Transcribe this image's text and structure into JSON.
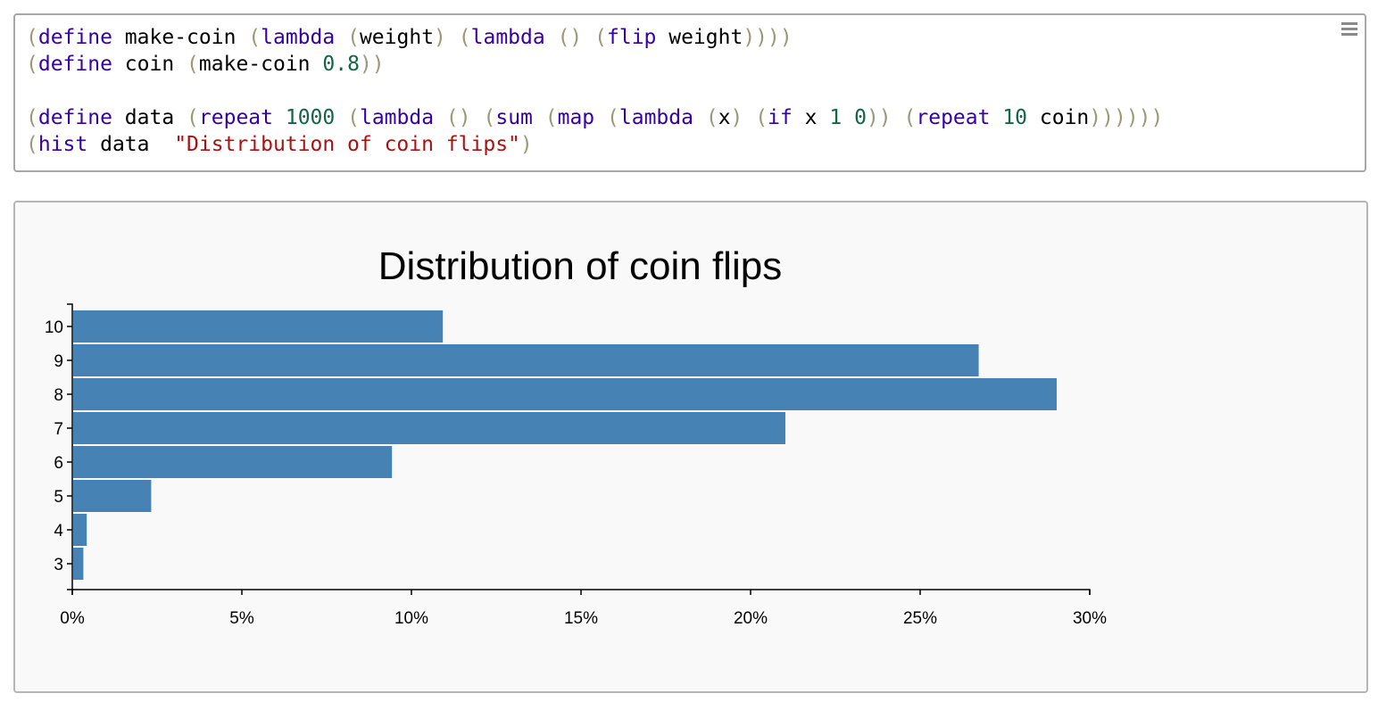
{
  "editor": {
    "menu_icon": "hamburger-menu-icon",
    "lines": [
      [
        {
          "t": "(",
          "c": "paren"
        },
        {
          "t": "define",
          "c": "kw"
        },
        {
          "t": " make-coin ",
          "c": "var"
        },
        {
          "t": "(",
          "c": "paren"
        },
        {
          "t": "lambda",
          "c": "kw"
        },
        {
          "t": " ",
          "c": "var"
        },
        {
          "t": "(",
          "c": "paren"
        },
        {
          "t": "weight",
          "c": "var"
        },
        {
          "t": ")",
          "c": "paren"
        },
        {
          "t": " ",
          "c": "var"
        },
        {
          "t": "(",
          "c": "paren"
        },
        {
          "t": "lambda",
          "c": "kw"
        },
        {
          "t": " ",
          "c": "var"
        },
        {
          "t": "()",
          "c": "paren"
        },
        {
          "t": " ",
          "c": "var"
        },
        {
          "t": "(",
          "c": "paren"
        },
        {
          "t": "flip",
          "c": "kw"
        },
        {
          "t": " weight",
          "c": "var"
        },
        {
          "t": "))))",
          "c": "paren"
        }
      ],
      [
        {
          "t": "(",
          "c": "paren"
        },
        {
          "t": "define",
          "c": "kw"
        },
        {
          "t": " coin ",
          "c": "var"
        },
        {
          "t": "(",
          "c": "paren"
        },
        {
          "t": "make-coin ",
          "c": "var"
        },
        {
          "t": "0.8",
          "c": "num"
        },
        {
          "t": "))",
          "c": "paren"
        }
      ],
      [],
      [
        {
          "t": "(",
          "c": "paren"
        },
        {
          "t": "define",
          "c": "kw"
        },
        {
          "t": " data ",
          "c": "var"
        },
        {
          "t": "(",
          "c": "paren"
        },
        {
          "t": "repeat",
          "c": "kw"
        },
        {
          "t": " ",
          "c": "var"
        },
        {
          "t": "1000",
          "c": "num"
        },
        {
          "t": " ",
          "c": "var"
        },
        {
          "t": "(",
          "c": "paren"
        },
        {
          "t": "lambda",
          "c": "kw"
        },
        {
          "t": " ",
          "c": "var"
        },
        {
          "t": "()",
          "c": "paren"
        },
        {
          "t": " ",
          "c": "var"
        },
        {
          "t": "(",
          "c": "paren"
        },
        {
          "t": "sum",
          "c": "kw"
        },
        {
          "t": " ",
          "c": "var"
        },
        {
          "t": "(",
          "c": "paren"
        },
        {
          "t": "map",
          "c": "kw"
        },
        {
          "t": " ",
          "c": "var"
        },
        {
          "t": "(",
          "c": "paren"
        },
        {
          "t": "lambda",
          "c": "kw"
        },
        {
          "t": " ",
          "c": "var"
        },
        {
          "t": "(",
          "c": "paren"
        },
        {
          "t": "x",
          "c": "var"
        },
        {
          "t": ")",
          "c": "paren"
        },
        {
          "t": " ",
          "c": "var"
        },
        {
          "t": "(",
          "c": "paren"
        },
        {
          "t": "if",
          "c": "kw"
        },
        {
          "t": " x ",
          "c": "var"
        },
        {
          "t": "1",
          "c": "num"
        },
        {
          "t": " ",
          "c": "var"
        },
        {
          "t": "0",
          "c": "num"
        },
        {
          "t": "))",
          "c": "paren"
        },
        {
          "t": " ",
          "c": "var"
        },
        {
          "t": "(",
          "c": "paren"
        },
        {
          "t": "repeat",
          "c": "kw"
        },
        {
          "t": " ",
          "c": "var"
        },
        {
          "t": "10",
          "c": "num"
        },
        {
          "t": " coin",
          "c": "var"
        },
        {
          "t": "))))))",
          "c": "paren"
        }
      ],
      [
        {
          "t": "(",
          "c": "paren"
        },
        {
          "t": "hist",
          "c": "kw"
        },
        {
          "t": " data  ",
          "c": "var"
        },
        {
          "t": "\"Distribution of coin flips\"",
          "c": "str"
        },
        {
          "t": ")",
          "c": "paren"
        }
      ]
    ]
  },
  "chart_data": {
    "type": "bar",
    "orientation": "horizontal",
    "title": "Distribution of coin flips",
    "categories": [
      "10",
      "9",
      "8",
      "7",
      "6",
      "5",
      "4",
      "3"
    ],
    "values": [
      0.109,
      0.267,
      0.29,
      0.21,
      0.094,
      0.023,
      0.004,
      0.003
    ],
    "xlim": [
      0,
      0.3
    ],
    "x_ticks": [
      0,
      0.05,
      0.1,
      0.15,
      0.2,
      0.25,
      0.3
    ],
    "x_tick_labels": [
      "0%",
      "5%",
      "10%",
      "15%",
      "20%",
      "25%",
      "30%"
    ],
    "bar_color": "#4682b4",
    "grid": false
  }
}
